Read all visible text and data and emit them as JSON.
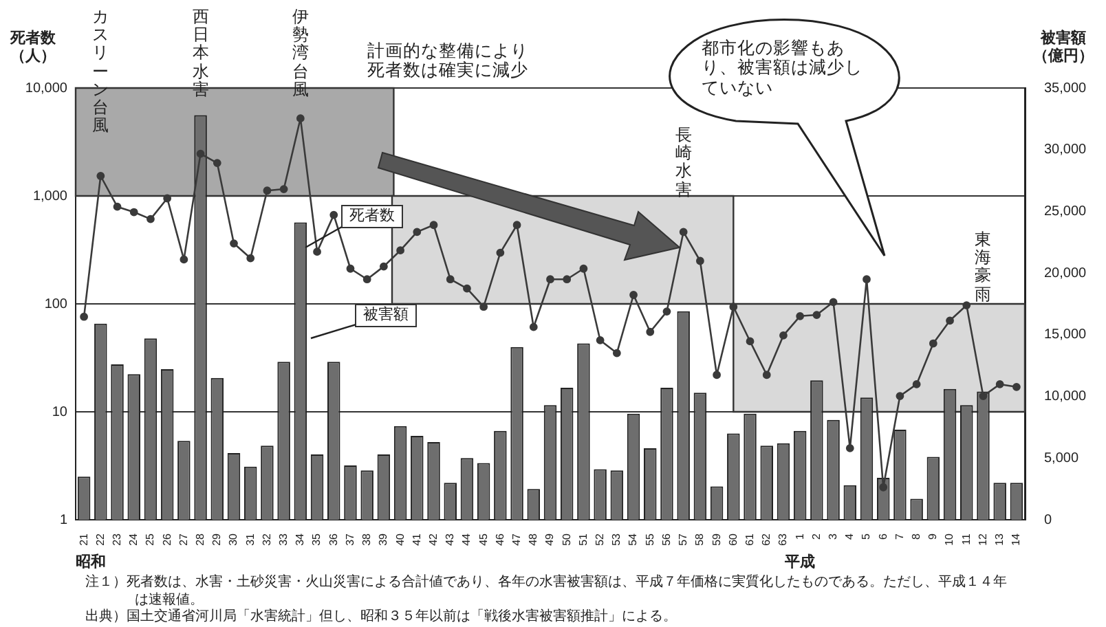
{
  "chart_data": {
    "type": "bar",
    "categories": [
      "21",
      "22",
      "23",
      "24",
      "25",
      "26",
      "27",
      "28",
      "29",
      "30",
      "31",
      "32",
      "33",
      "34",
      "35",
      "36",
      "37",
      "38",
      "39",
      "40",
      "41",
      "42",
      "43",
      "44",
      "45",
      "46",
      "47",
      "48",
      "49",
      "50",
      "51",
      "52",
      "53",
      "54",
      "55",
      "56",
      "57",
      "58",
      "59",
      "60",
      "61",
      "62",
      "63",
      "1",
      "2",
      "3",
      "4",
      "5",
      "6",
      "7",
      "8",
      "9",
      "10",
      "11",
      "12",
      "13",
      "14"
    ],
    "ylabel": "死者数（人）",
    "y2label": "被害額（億円）",
    "series": [
      {
        "name": "被害額",
        "axis": "y2",
        "color": "#6e6e6e",
        "values": [
          3500,
          15900,
          12600,
          11800,
          14700,
          12200,
          6400,
          32800,
          11500,
          5400,
          4300,
          6000,
          12800,
          24100,
          5300,
          12800,
          4400,
          4000,
          5300,
          7600,
          6800,
          6300,
          3000,
          5000,
          4600,
          7200,
          14000,
          2500,
          9300,
          10700,
          14300,
          4100,
          4000,
          8600,
          5800,
          10700,
          16900,
          10300,
          2700,
          7000,
          8600,
          6000,
          6200,
          7200,
          11300,
          8100,
          2800,
          9900,
          3400,
          7300,
          1700,
          5100,
          10600,
          9300,
          10400,
          3000,
          3000
        ]
      },
      {
        "name": "死者数",
        "type": "line",
        "axis": "y",
        "color": "#3a3a3a",
        "values": [
          76,
          1530,
          795,
          708,
          611,
          950,
          258,
          2460,
          2020,
          363,
          265,
          1120,
          1157,
          5230,
          304,
          667,
          212,
          169,
          222,
          313,
          464,
          538,
          169,
          139,
          94,
          298,
          538,
          61,
          169,
          169,
          212,
          46,
          35,
          121,
          55,
          85,
          464,
          250,
          22,
          94,
          45,
          22,
          51,
          77,
          79,
          104,
          4.6,
          169,
          2.0,
          14,
          18,
          43,
          70,
          97,
          14,
          18,
          17
        ]
      }
    ],
    "log": "y",
    "ylim": [
      1,
      10000
    ],
    "yticks": [
      1,
      10,
      100,
      {
        "value": 1000,
        "label": "1,000"
      },
      {
        "value": 10000,
        "label": "10,000"
      }
    ],
    "y2lim": [
      0,
      35000
    ],
    "y2ticks": [
      0,
      {
        "value": 5000,
        "label": "5,000"
      },
      {
        "value": 10000,
        "label": "10,000"
      },
      {
        "value": 15000,
        "label": "15,000"
      },
      {
        "value": 20000,
        "label": "20,000"
      },
      {
        "value": 25000,
        "label": "25,000"
      },
      {
        "value": 30000,
        "label": "30,000"
      },
      {
        "value": 35000,
        "label": "35,000"
      }
    ],
    "grid": "y",
    "legend": false,
    "marker": "circle",
    "bands": [
      {
        "axis": "y",
        "from": 1000,
        "to": 10000,
        "color": "#a9a9a9"
      },
      {
        "axis": "y",
        "from": 100,
        "to": 1000,
        "color": "#d9d9d9"
      },
      {
        "axis": "y",
        "from": 10,
        "to": 100,
        "color": "#d9d9d9"
      }
    ],
    "annotations": [
      "計画的な整備により死者数は確実に減少",
      "都市化の影響もあり、被害額は減少していない",
      "カスリーン台風",
      "西日本水害",
      "伊勢湾台風",
      "長崎水害",
      "東海豪雨",
      "昭和",
      "平成",
      "注１）死者数は、水害・土砂災害・火山災害による合計値であり、各年の水害被害額は、平成７年価格に実質化したものである。ただし、平成１４年は速報値。",
      "出典）国土交通省河川局「水害統計」但し、昭和３５年以前は「戦後水害被害額推計」による。"
    ]
  }
}
